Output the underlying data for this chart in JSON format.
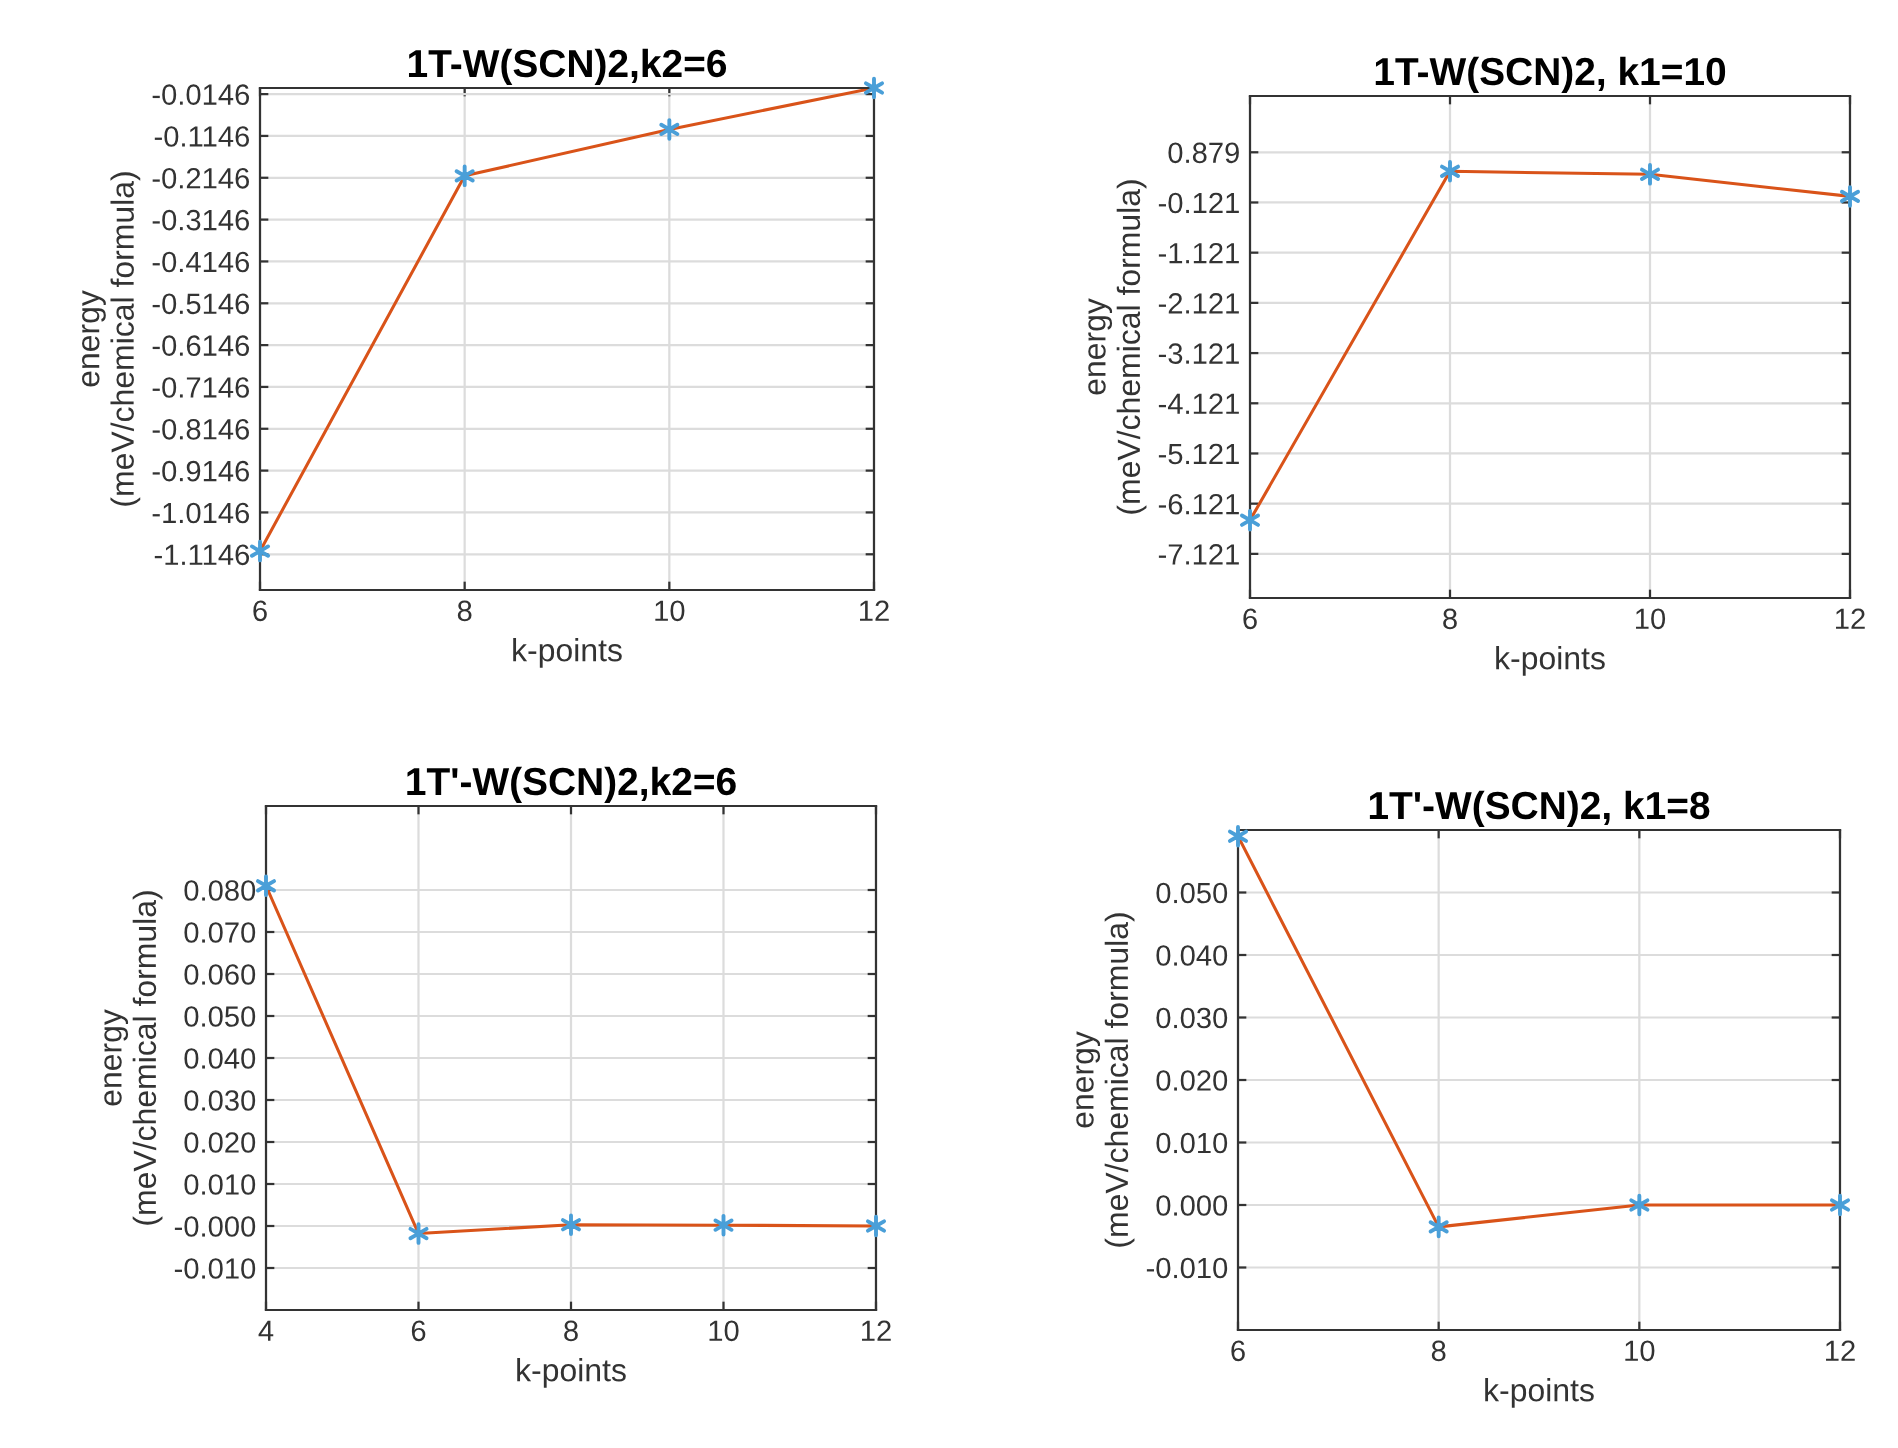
{
  "chart_data": [
    {
      "type": "line",
      "title": "1T-W(SCN)2,k2=6",
      "xlabel": "k-points",
      "ylabel": "energy\n(meV/chemical formula)",
      "x": [
        6,
        8,
        10,
        12
      ],
      "series": [
        {
          "color": "#d95319",
          "values": [
            -1.107,
            -0.21,
            -0.099,
            0
          ]
        },
        {
          "type": "scatter",
          "color": "#4a9fd8",
          "marker": "cross",
          "values": [
            -1.107,
            -0.21,
            -0.099,
            0
          ]
        }
      ],
      "xlim": [
        6,
        12
      ],
      "xticks": [
        6,
        8,
        10,
        12
      ],
      "ylim": [
        -1.2,
        0
      ],
      "yticks": [
        -1.1146,
        -1.0146,
        -0.9146,
        -0.8146,
        -0.7146,
        -0.6146,
        -0.5146,
        -0.4146,
        -0.3146,
        -0.2146,
        -0.1146,
        -0.0146
      ],
      "grid": true
    },
    {
      "type": "line",
      "title": "1T-W(SCN)2, k1=10",
      "xlabel": "k-points",
      "ylabel": "energy\n(meV/chemical formula)",
      "x": [
        6,
        8,
        10,
        12
      ],
      "series": [
        {
          "color": "#d95319",
          "values": [
            -6.45,
            0.5,
            0.44,
            0
          ]
        },
        {
          "type": "scatter",
          "color": "#4a9fd8",
          "marker": "cross",
          "values": [
            -6.45,
            0.5,
            0.44,
            0
          ]
        }
      ],
      "xlim": [
        6,
        12
      ],
      "xticks": [
        6,
        8,
        10,
        12
      ],
      "ylim": [
        -8,
        2
      ],
      "yticks": [
        -7.121,
        -6.121,
        -5.121,
        -4.121,
        -3.121,
        -2.121,
        -1.121,
        -0.121,
        0.879
      ],
      "grid": true
    },
    {
      "type": "line",
      "title": "1T'-W(SCN)2,k2=6",
      "xlabel": "k-points",
      "ylabel": "energy\n(meV/chemical formula)",
      "x": [
        4,
        6,
        8,
        10,
        12
      ],
      "series": [
        {
          "color": "#d95319",
          "values": [
            0.081,
            -0.0018,
            0.0003,
            0.0002,
            0
          ]
        },
        {
          "type": "scatter",
          "color": "#4a9fd8",
          "marker": "cross",
          "values": [
            0.081,
            -0.0018,
            0.0003,
            0.0002,
            0
          ]
        }
      ],
      "xlim": [
        4,
        12
      ],
      "xticks": [
        4,
        6,
        8,
        10,
        12
      ],
      "ylim": [
        -0.02,
        0.1
      ],
      "yticks": [
        {
          "value": -0.01,
          "label": "-0.010"
        },
        {
          "value": 0,
          "label": "-0.000"
        },
        {
          "value": 0.01,
          "label": "0.010"
        },
        {
          "value": 0.02,
          "label": "0.020"
        },
        {
          "value": 0.03,
          "label": "0.030"
        },
        {
          "value": 0.04,
          "label": "0.040"
        },
        {
          "value": 0.05,
          "label": "0.050"
        },
        {
          "value": 0.06,
          "label": "0.060"
        },
        {
          "value": 0.07,
          "label": "0.070"
        },
        {
          "value": 0.08,
          "label": "0.080"
        }
      ],
      "grid": true
    },
    {
      "type": "line",
      "title": "1T'-W(SCN)2, k1=8",
      "xlabel": "k-points",
      "ylabel": "energy\n(meV/chemical formula)",
      "x": [
        6,
        8,
        10,
        12
      ],
      "series": [
        {
          "color": "#d95319",
          "values": [
            0.059,
            -0.0035,
            0,
            0
          ]
        },
        {
          "type": "scatter",
          "color": "#4a9fd8",
          "marker": "cross",
          "values": [
            0.059,
            -0.0035,
            0,
            0
          ]
        }
      ],
      "xlim": [
        6,
        12
      ],
      "xticks": [
        6,
        8,
        10,
        12
      ],
      "ylim": [
        -0.02,
        0.06
      ],
      "yticks": [
        {
          "value": -0.01,
          "label": "-0.010"
        },
        {
          "value": 0,
          "label": "0.000"
        },
        {
          "value": 0.01,
          "label": "0.010"
        },
        {
          "value": 0.02,
          "label": "0.020"
        },
        {
          "value": 0.03,
          "label": "0.030"
        },
        {
          "value": 0.04,
          "label": "0.040"
        },
        {
          "value": 0.05,
          "label": "0.050"
        }
      ],
      "grid": true
    }
  ]
}
